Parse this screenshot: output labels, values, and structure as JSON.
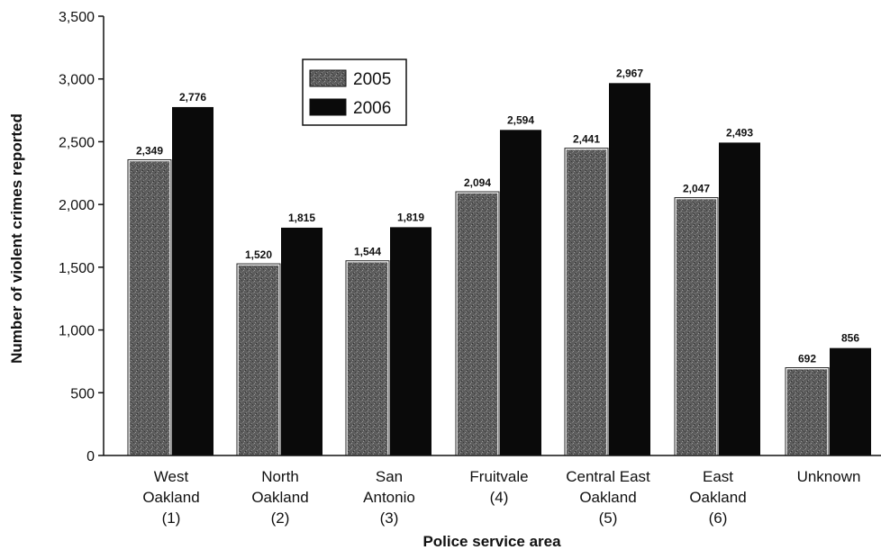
{
  "chart_data": {
    "type": "bar",
    "title": "",
    "xlabel": "Police service area",
    "ylabel": "Number of violent crimes reported",
    "ylim": [
      0,
      3500
    ],
    "yticks": [
      0,
      500,
      1000,
      1500,
      2000,
      2500,
      3000,
      3500
    ],
    "ytick_labels": [
      "0",
      "500",
      "1,000",
      "1,500",
      "2,000",
      "2,500",
      "3,000",
      "3,500"
    ],
    "categories": [
      "West Oakland (1)",
      "North Oakland (2)",
      "San Antonio (3)",
      "Fruitvale (4)",
      "Central East Oakland (5)",
      "East Oakland (6)",
      "Unknown"
    ],
    "category_lines": [
      [
        "West",
        "Oakland",
        "(1)"
      ],
      [
        "North",
        "Oakland",
        "(2)"
      ],
      [
        "San",
        "Antonio",
        "(3)"
      ],
      [
        "Fruitvale",
        "(4)"
      ],
      [
        "Central East",
        "Oakland",
        "(5)"
      ],
      [
        "East",
        "Oakland",
        "(6)"
      ],
      [
        "Unknown"
      ]
    ],
    "series": [
      {
        "name": "2005",
        "values": [
          2349,
          1520,
          1544,
          2094,
          2441,
          2047,
          692
        ],
        "value_labels": [
          "2,349",
          "1,520",
          "1,544",
          "2,094",
          "2,441",
          "2,047",
          "692"
        ],
        "color": "#5a5a5a",
        "style": "speckled"
      },
      {
        "name": "2006",
        "values": [
          2776,
          1815,
          1819,
          2594,
          2967,
          2493,
          856
        ],
        "value_labels": [
          "2,776",
          "1,815",
          "1,819",
          "2,594",
          "2,967",
          "2,493",
          "856"
        ],
        "color": "#0a0a0a",
        "style": "solid"
      }
    ],
    "legend": {
      "placement": "top-center",
      "entries": [
        "2005",
        "2006"
      ]
    },
    "grid": false
  }
}
